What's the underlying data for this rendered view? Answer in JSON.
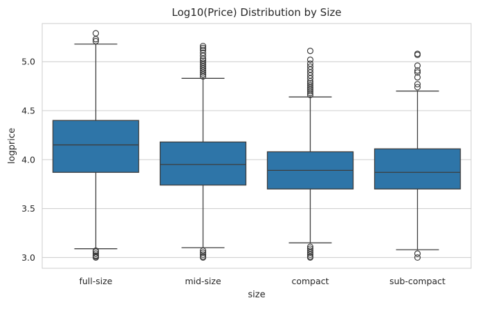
{
  "chart_data": {
    "type": "box",
    "title": "Log10(Price) Distribution by Size",
    "xlabel": "size",
    "ylabel": "logprice",
    "ylim": [
      2.89,
      5.39
    ],
    "yticks": [
      "3.0",
      "3.5",
      "4.0",
      "4.5",
      "5.0"
    ],
    "grid": true,
    "box_color": "#2e75a8",
    "edge_color": "#3d3d3d",
    "categories": [
      "full-size",
      "mid-size",
      "compact",
      "sub-compact"
    ],
    "boxes": [
      {
        "category": "full-size",
        "whisker_low": 3.09,
        "q1": 3.87,
        "median": 4.15,
        "q3": 4.4,
        "whisker_high": 5.18,
        "outliers_high": [
          5.21,
          5.23,
          5.29
        ],
        "outliers_low": [
          3.0,
          3.01,
          3.02,
          3.04,
          3.06,
          3.07
        ]
      },
      {
        "category": "mid-size",
        "whisker_low": 3.1,
        "q1": 3.74,
        "median": 3.95,
        "q3": 4.18,
        "whisker_high": 4.83,
        "outliers_high": [
          4.85,
          4.87,
          4.89,
          4.91,
          4.93,
          4.95,
          4.97,
          4.99,
          5.01,
          5.03,
          5.06,
          5.09,
          5.12,
          5.14,
          5.16
        ],
        "outliers_low": [
          3.0,
          3.01,
          3.03,
          3.05,
          3.07
        ]
      },
      {
        "category": "compact",
        "whisker_low": 3.15,
        "q1": 3.7,
        "median": 3.89,
        "q3": 4.08,
        "whisker_high": 4.64,
        "outliers_high": [
          4.66,
          4.68,
          4.7,
          4.72,
          4.74,
          4.76,
          4.78,
          4.8,
          4.83,
          4.86,
          4.89,
          4.92,
          4.95,
          4.98,
          5.02,
          5.11
        ],
        "outliers_low": [
          3.0,
          3.01,
          3.03,
          3.05,
          3.07,
          3.09,
          3.11
        ]
      },
      {
        "category": "sub-compact",
        "whisker_low": 3.08,
        "q1": 3.7,
        "median": 3.87,
        "q3": 4.11,
        "whisker_high": 4.7,
        "outliers_high": [
          4.74,
          4.77,
          4.84,
          4.89,
          4.91,
          4.96,
          5.07,
          5.08
        ],
        "outliers_low": [
          3.0,
          3.04
        ]
      }
    ]
  }
}
